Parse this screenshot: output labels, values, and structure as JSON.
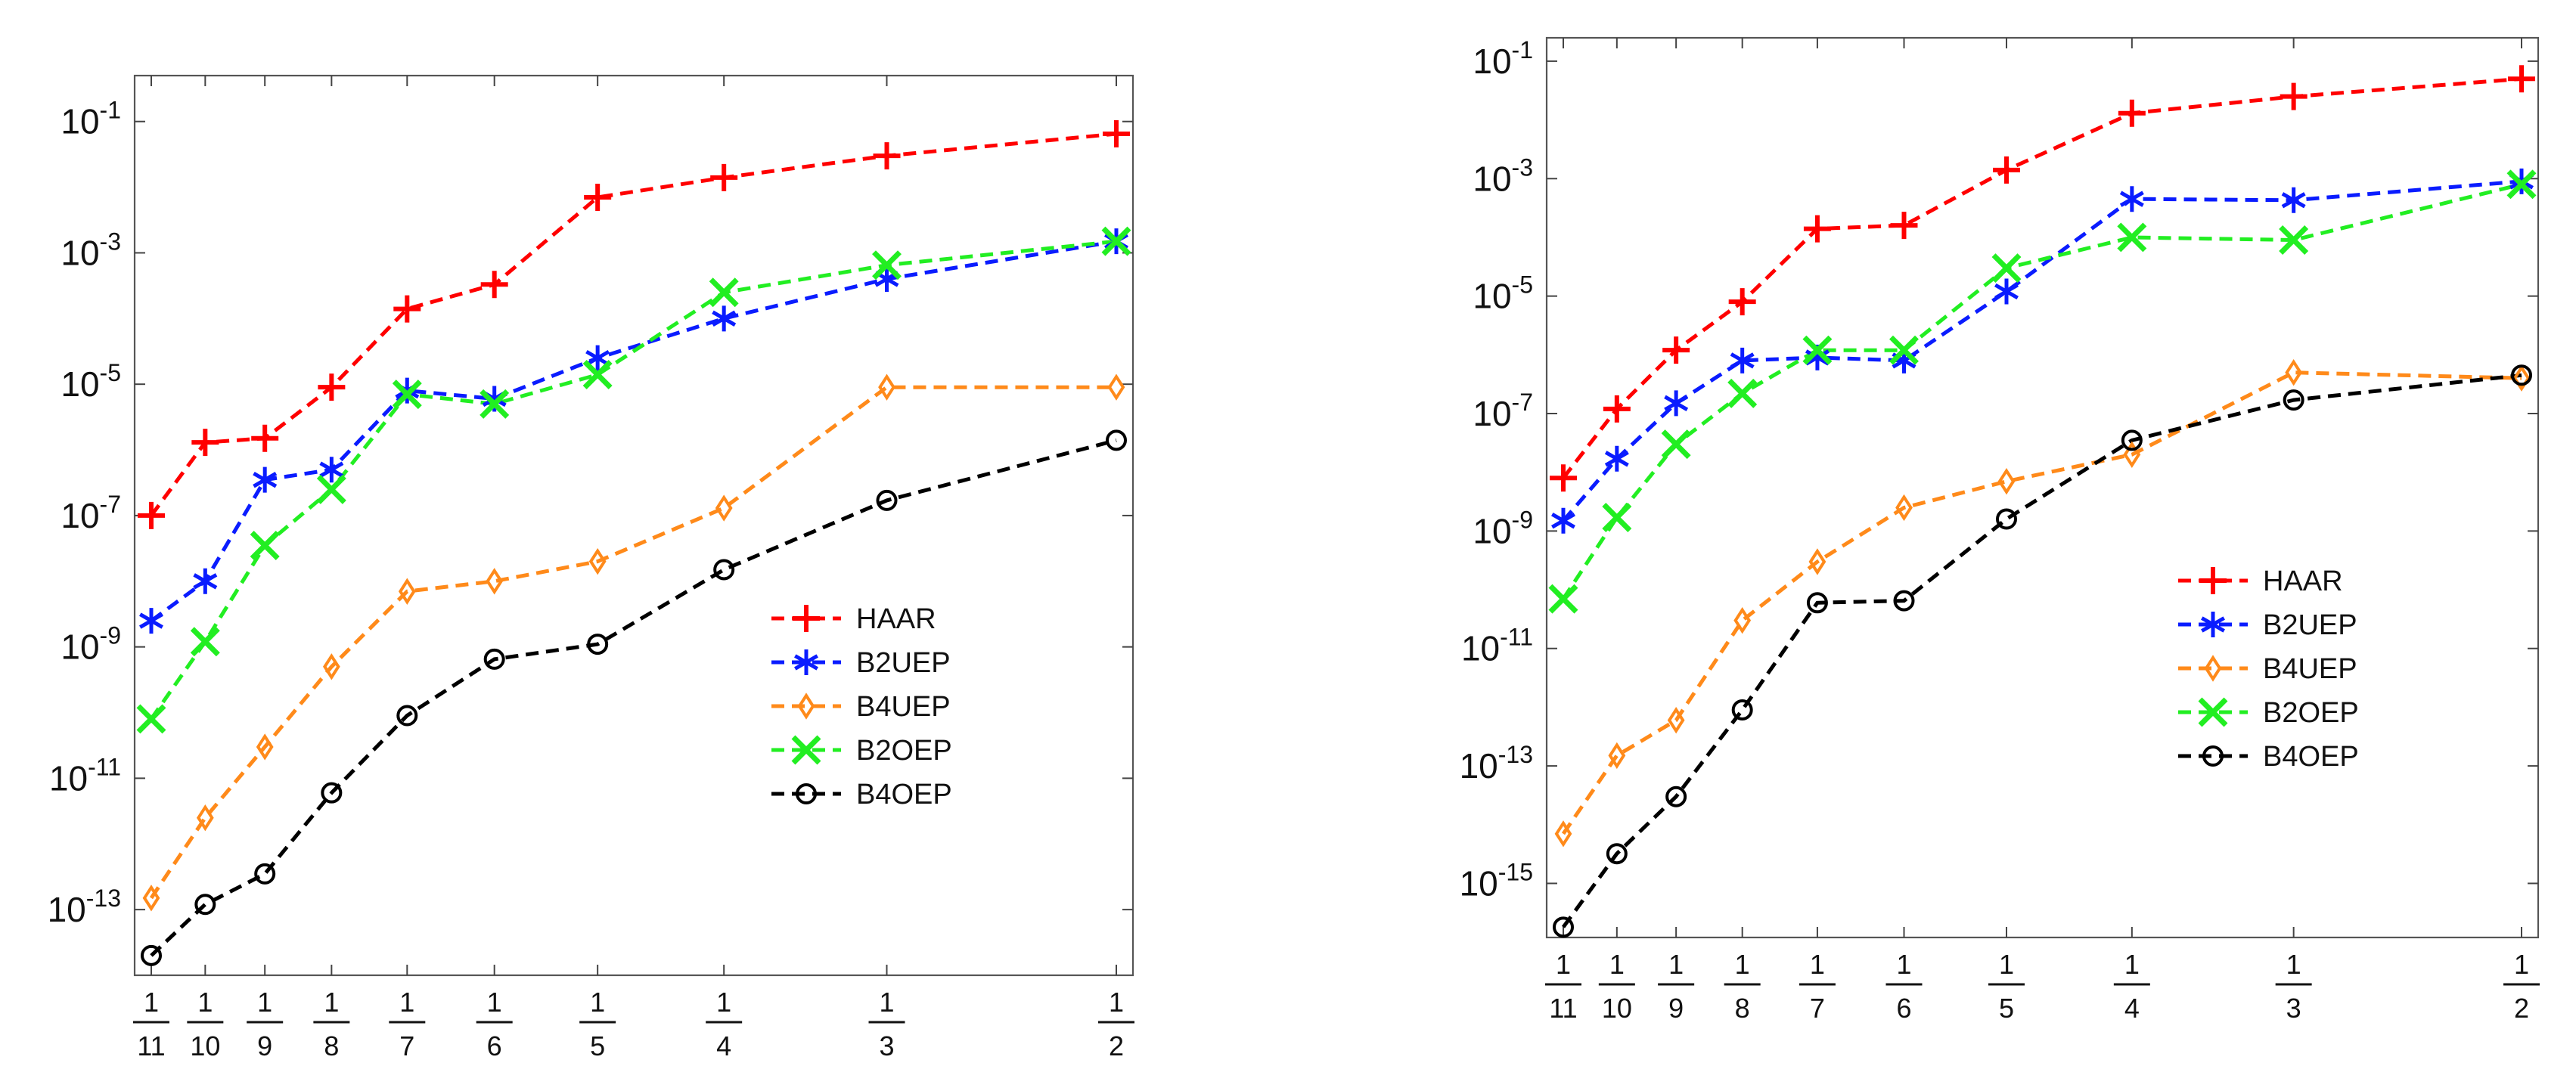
{
  "chart_data": [
    {
      "type": "line",
      "yscale": "log",
      "ylim": [
        1e-14,
        0.5
      ],
      "x_categories": [
        "1/11",
        "1/10",
        "1/9",
        "1/8",
        "1/7",
        "1/6",
        "1/5",
        "1/4",
        "1/3",
        "1/2"
      ],
      "x": [
        0.090909,
        0.1,
        0.111111,
        0.125,
        0.142857,
        0.166667,
        0.2,
        0.25,
        0.333333,
        0.5
      ],
      "x_ticks": [
        {
          "num": "1",
          "den": "11",
          "value": 0.090909
        },
        {
          "num": "1",
          "den": "10",
          "value": 0.1
        },
        {
          "num": "1",
          "den": "9",
          "value": 0.111111
        },
        {
          "num": "1",
          "den": "8",
          "value": 0.125
        },
        {
          "num": "1",
          "den": "7",
          "value": 0.142857
        },
        {
          "num": "1",
          "den": "6",
          "value": 0.166667
        },
        {
          "num": "1",
          "den": "5",
          "value": 0.2
        },
        {
          "num": "1",
          "den": "4",
          "value": 0.25
        },
        {
          "num": "1",
          "den": "3",
          "value": 0.333333
        },
        {
          "num": "1",
          "den": "2",
          "value": 0.5
        }
      ],
      "y_ticks": [
        {
          "base": "10",
          "exp": "-13",
          "value": 1e-13
        },
        {
          "base": "10",
          "exp": "-11",
          "value": 1e-11
        },
        {
          "base": "10",
          "exp": "-9",
          "value": 1e-09
        },
        {
          "base": "10",
          "exp": "-7",
          "value": 1e-07
        },
        {
          "base": "10",
          "exp": "-5",
          "value": 1e-05
        },
        {
          "base": "10",
          "exp": "-3",
          "value": 0.001
        },
        {
          "base": "10",
          "exp": "-1",
          "value": 0.1
        }
      ],
      "legend_position": "lower-right",
      "series": [
        {
          "name": "HAAR",
          "color": "#ff0000",
          "marker": "plus",
          "values": [
            1e-07,
            1.3e-06,
            1.5e-06,
            9e-06,
            0.00014,
            0.00033,
            0.007,
            0.014,
            0.03,
            0.065
          ]
        },
        {
          "name": "B2UEP",
          "color": "#0a1cff",
          "marker": "star",
          "values": [
            2.5e-09,
            1e-08,
            3.5e-07,
            5e-07,
            8e-06,
            6e-06,
            2.5e-05,
            0.0001,
            0.0004,
            0.0015
          ]
        },
        {
          "name": "B4UEP",
          "color": "#ff8a1a",
          "marker": "diamond",
          "values": [
            1.5e-13,
            2.5e-12,
            3e-11,
            5e-10,
            7e-09,
            1e-08,
            2e-08,
            1.3e-07,
            9e-06,
            9e-06
          ]
        },
        {
          "name": "B2OEP",
          "color": "#22ee22",
          "marker": "x",
          "values": [
            8e-11,
            1.2e-09,
            3.5e-08,
            2.5e-07,
            7e-06,
            5e-06,
            1.4e-05,
            0.00025,
            0.00065,
            0.0015
          ]
        },
        {
          "name": "B4OEP",
          "color": "#000000",
          "marker": "circle",
          "values": [
            2e-14,
            1.2e-13,
            3.5e-13,
            6e-12,
            9e-11,
            6.5e-10,
            1.1e-09,
            1.5e-08,
            1.7e-07,
            1.4e-06
          ]
        }
      ]
    },
    {
      "type": "line",
      "yscale": "log",
      "ylim": [
        1.2e-16,
        0.25
      ],
      "x_categories": [
        "1/11",
        "1/10",
        "1/9",
        "1/8",
        "1/7",
        "1/6",
        "1/5",
        "1/4",
        "1/3",
        "1/2"
      ],
      "x": [
        0.090909,
        0.1,
        0.111111,
        0.125,
        0.142857,
        0.166667,
        0.2,
        0.25,
        0.333333,
        0.5
      ],
      "x_ticks": [
        {
          "num": "1",
          "den": "11",
          "value": 0.090909
        },
        {
          "num": "1",
          "den": "10",
          "value": 0.1
        },
        {
          "num": "1",
          "den": "9",
          "value": 0.111111
        },
        {
          "num": "1",
          "den": "8",
          "value": 0.125
        },
        {
          "num": "1",
          "den": "7",
          "value": 0.142857
        },
        {
          "num": "1",
          "den": "6",
          "value": 0.166667
        },
        {
          "num": "1",
          "den": "5",
          "value": 0.2
        },
        {
          "num": "1",
          "den": "4",
          "value": 0.25
        },
        {
          "num": "1",
          "den": "3",
          "value": 0.333333
        },
        {
          "num": "1",
          "den": "2",
          "value": 0.5
        }
      ],
      "y_ticks": [
        {
          "base": "10",
          "exp": "-15",
          "value": 1e-15
        },
        {
          "base": "10",
          "exp": "-13",
          "value": 1e-13
        },
        {
          "base": "10",
          "exp": "-11",
          "value": 1e-11
        },
        {
          "base": "10",
          "exp": "-9",
          "value": 1e-09
        },
        {
          "base": "10",
          "exp": "-7",
          "value": 1e-07
        },
        {
          "base": "10",
          "exp": "-5",
          "value": 1e-05
        },
        {
          "base": "10",
          "exp": "-3",
          "value": 0.001
        },
        {
          "base": "10",
          "exp": "-1",
          "value": 0.1
        }
      ],
      "legend_position": "right-center",
      "series": [
        {
          "name": "HAAR",
          "color": "#ff0000",
          "marker": "plus",
          "values": [
            8e-09,
            1.2e-07,
            1.2e-06,
            8e-06,
            0.00014,
            0.00016,
            0.0014,
            0.013,
            0.025,
            0.05
          ]
        },
        {
          "name": "B2UEP",
          "color": "#0a1cff",
          "marker": "star",
          "values": [
            1.5e-09,
            1.7e-08,
            1.5e-07,
            8e-07,
            9e-07,
            8e-07,
            1.2e-05,
            0.00045,
            0.00043,
            0.0009
          ]
        },
        {
          "name": "B4UEP",
          "color": "#ff8a1a",
          "marker": "diamond",
          "values": [
            7e-15,
            1.5e-13,
            6e-13,
            3e-11,
            3e-10,
            2.5e-09,
            7e-09,
            2e-08,
            5e-07,
            4e-07
          ]
        },
        {
          "name": "B2OEP",
          "color": "#22ee22",
          "marker": "x",
          "values": [
            7e-11,
            1.7e-09,
            3e-08,
            2.2e-07,
            1.2e-06,
            1.2e-06,
            3e-05,
            0.0001,
            9e-05,
            0.0008
          ]
        },
        {
          "name": "B4OEP",
          "color": "#000000",
          "marker": "circle",
          "values": [
            1.8e-16,
            3.2e-15,
            3e-14,
            9e-13,
            6e-11,
            6.5e-11,
            1.6e-09,
            3.5e-08,
            1.7e-07,
            4.5e-07
          ]
        }
      ]
    }
  ]
}
